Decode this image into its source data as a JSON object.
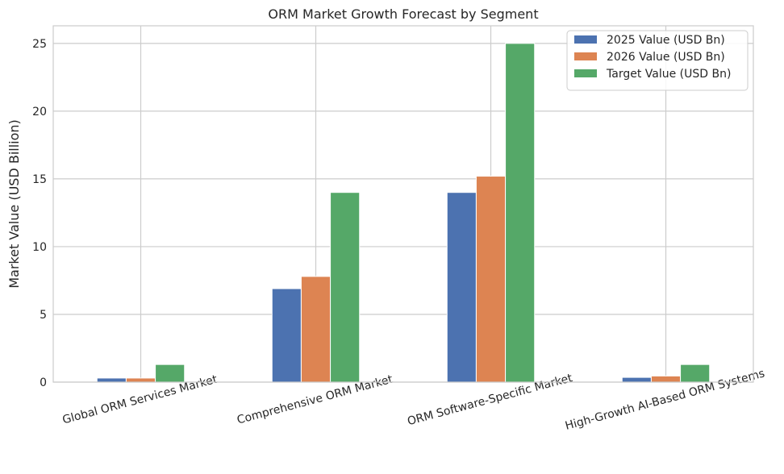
{
  "chart_data": {
    "type": "bar",
    "title": "ORM Market Growth Forecast by Segment",
    "xlabel": "",
    "ylabel": "Market Value (USD Billion)",
    "categories": [
      "Global ORM Services Market",
      "Comprehensive ORM Market",
      "ORM Software-Specific Market",
      "High-Growth AI-Based ORM Systems"
    ],
    "series": [
      {
        "name": "2025 Value (USD Bn)",
        "color": "#4c72b0",
        "values": [
          0.3,
          6.9,
          14.0,
          0.35
        ]
      },
      {
        "name": "2026 Value (USD Bn)",
        "color": "#dd8452",
        "values": [
          0.3,
          7.8,
          15.2,
          0.45
        ]
      },
      {
        "name": "Target Value (USD Bn)",
        "color": "#55a868",
        "values": [
          1.3,
          14.0,
          25.0,
          1.3
        ]
      }
    ],
    "ylim": [
      0,
      26.3
    ],
    "yticks": [
      0,
      5,
      10,
      15,
      20,
      25
    ],
    "grid": true,
    "legend": "top-right",
    "xtick_rotation": 15
  }
}
